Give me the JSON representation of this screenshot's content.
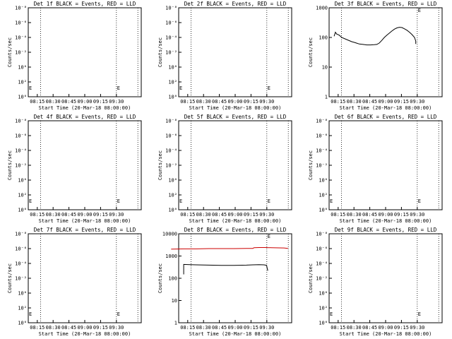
{
  "panels": [
    {
      "title": "Det 1f BLACK = Events, RED = LLD",
      "xlabel": "Start Time (20-Mar-18 08:00:00)",
      "ylabel": "Counts/sec",
      "yticks": [
        "10⁻⁸",
        "10⁻⁶",
        "10⁻⁴",
        "10⁻²",
        "10⁰",
        "10²",
        "10⁰"
      ],
      "xticks": [
        "08:15",
        "08:30",
        "08:45",
        "09:00",
        "09:15",
        "09:30"
      ],
      "marker_labels": [
        "E",
        "E"
      ],
      "chart_data": {
        "type": "line",
        "scale": "placeholder",
        "series": []
      }
    },
    {
      "title": "Det 2f BLACK = Events, RED = LLD",
      "xlabel": "Start Time (20-Mar-18 08:00:00)",
      "ylabel": "Counts/sec",
      "yticks": [
        "10⁻⁸",
        "10⁻⁶",
        "10⁻⁴",
        "10⁻²",
        "10⁰",
        "10²",
        "10⁰"
      ],
      "xticks": [
        "08:15",
        "08:30",
        "08:45",
        "09:00",
        "09:15",
        "09:30"
      ],
      "marker_labels": [
        "E",
        "E"
      ],
      "chart_data": {
        "type": "line",
        "scale": "placeholder",
        "series": []
      }
    },
    {
      "title": "Det 3f BLACK = Events, RED = LLD",
      "xlabel": "Start Time (20-Mar-18 08:00:00)",
      "ylabel": "Counts/sec",
      "yticks": [
        "1000",
        "100",
        "10",
        "1"
      ],
      "xticks": [
        "08:15",
        "08:30",
        "08:45",
        "09:00",
        "09:15",
        "09:30"
      ],
      "marker_labels": [
        "E"
      ],
      "chart_data": {
        "type": "line",
        "scale": "log",
        "ylim": [
          1,
          1000
        ],
        "series": [
          {
            "color": "#000000",
            "points": [
              [
                "08:10",
                110
              ],
              [
                "08:11",
                150
              ],
              [
                "08:12",
                130
              ],
              [
                "08:14",
                120
              ],
              [
                "08:16",
                100
              ],
              [
                "08:18",
                92
              ],
              [
                "08:20",
                85
              ],
              [
                "08:22",
                78
              ],
              [
                "08:24",
                72
              ],
              [
                "08:26",
                68
              ],
              [
                "08:28",
                64
              ],
              [
                "08:30",
                60
              ],
              [
                "08:33",
                58
              ],
              [
                "08:36",
                56
              ],
              [
                "08:39",
                56
              ],
              [
                "08:42",
                57
              ],
              [
                "08:44",
                58
              ],
              [
                "08:46",
                65
              ],
              [
                "08:48",
                80
              ],
              [
                "08:50",
                100
              ],
              [
                "08:52",
                120
              ],
              [
                "08:54",
                140
              ],
              [
                "08:56",
                165
              ],
              [
                "08:58",
                190
              ],
              [
                "09:00",
                210
              ],
              [
                "09:02",
                220
              ],
              [
                "09:04",
                215
              ],
              [
                "09:06",
                195
              ],
              [
                "09:08",
                175
              ],
              [
                "09:10",
                150
              ],
              [
                "09:12",
                125
              ],
              [
                "09:14",
                100
              ],
              [
                "09:15",
                75
              ],
              [
                "09:15",
                60
              ]
            ]
          }
        ]
      }
    },
    {
      "title": "Det 4f BLACK = Events, RED = LLD",
      "xlabel": "Start Time (20-Mar-18 08:00:00)",
      "ylabel": "Counts/sec",
      "yticks": [
        "10⁻⁸",
        "10⁻⁶",
        "10⁻⁴",
        "10⁻²",
        "10⁰",
        "10²",
        "10⁰"
      ],
      "xticks": [
        "08:15",
        "08:30",
        "08:45",
        "09:00",
        "09:15",
        "09:30"
      ],
      "marker_labels": [
        "E",
        "E"
      ],
      "chart_data": {
        "type": "line",
        "scale": "placeholder",
        "series": []
      }
    },
    {
      "title": "Det 5f BLACK = Events, RED = LLD",
      "xlabel": "Start Time (20-Mar-18 08:00:00)",
      "ylabel": "Counts/sec",
      "yticks": [
        "10⁻⁸",
        "10⁻⁶",
        "10⁻⁴",
        "10⁻²",
        "10⁰",
        "10²",
        "10⁰"
      ],
      "xticks": [
        "08:15",
        "08:30",
        "08:45",
        "09:00",
        "09:15",
        "09:30"
      ],
      "marker_labels": [
        "E",
        "E"
      ],
      "chart_data": {
        "type": "line",
        "scale": "placeholder",
        "series": []
      }
    },
    {
      "title": "Det 6f BLACK = Events, RED = LLD",
      "xlabel": "Start Time (20-Mar-18 08:00:00)",
      "ylabel": "Counts/sec",
      "yticks": [
        "10⁻⁸",
        "10⁻⁶",
        "10⁻⁴",
        "10⁻²",
        "10⁰",
        "10²",
        "10⁰"
      ],
      "xticks": [
        "08:15",
        "08:30",
        "08:45",
        "09:00",
        "09:15",
        "09:30"
      ],
      "marker_labels": [
        "E",
        "E"
      ],
      "chart_data": {
        "type": "line",
        "scale": "placeholder",
        "series": []
      }
    },
    {
      "title": "Det 7f BLACK = Events, RED = LLD",
      "xlabel": "Start Time (20-Mar-18 08:00:00)",
      "ylabel": "Counts/sec",
      "yticks": [
        "10⁻⁸",
        "10⁻⁶",
        "10⁻⁴",
        "10⁻²",
        "10⁰",
        "10²",
        "10⁰"
      ],
      "xticks": [
        "08:15",
        "08:30",
        "08:45",
        "09:00",
        "09:15",
        "09:30"
      ],
      "marker_labels": [
        "E",
        "E"
      ],
      "chart_data": {
        "type": "line",
        "scale": "placeholder",
        "series": []
      }
    },
    {
      "title": "Det 8f BLACK = Events, RED = LLD",
      "xlabel": "Start Time (20-Mar-18 08:00:00)",
      "ylabel": "Counts/sec",
      "yticks": [
        "10000",
        "1000",
        "100",
        "10",
        "1"
      ],
      "xticks": [
        "08:15",
        "08:30",
        "08:45",
        "09:00",
        "09:15",
        "09:30"
      ],
      "marker_labels": [
        "E"
      ],
      "chart_data": {
        "type": "line",
        "scale": "log",
        "ylim": [
          1,
          10000
        ],
        "series": [
          {
            "color": "#cc0000",
            "points": [
              [
                "08:00",
                2050
              ],
              [
                "08:10",
                2100
              ],
              [
                "08:20",
                2100
              ],
              [
                "08:30",
                2150
              ],
              [
                "08:40",
                2150
              ],
              [
                "08:50",
                2150
              ],
              [
                "09:00",
                2200
              ],
              [
                "09:05",
                2200
              ],
              [
                "09:06",
                2350
              ],
              [
                "09:10",
                2400
              ],
              [
                "09:15",
                2400
              ],
              [
                "09:20",
                2350
              ],
              [
                "09:30",
                2300
              ],
              [
                "09:33",
                2200
              ]
            ]
          },
          {
            "color": "#000000",
            "points": [
              [
                "08:10",
                150
              ],
              [
                "08:10",
                420
              ],
              [
                "08:15",
                410
              ],
              [
                "08:20",
                400
              ],
              [
                "08:30",
                390
              ],
              [
                "08:40",
                380
              ],
              [
                "08:50",
                380
              ],
              [
                "09:00",
                390
              ],
              [
                "09:05",
                400
              ],
              [
                "09:10",
                410
              ],
              [
                "09:14",
                400
              ],
              [
                "09:16",
                380
              ],
              [
                "09:17",
                220
              ]
            ]
          }
        ]
      }
    },
    {
      "title": "Det 9f BLACK = Events, RED = LLD",
      "xlabel": "Start Time (20-Mar-18 08:00:00)",
      "ylabel": "Counts/sec",
      "yticks": [
        "10⁻⁸",
        "10⁻⁶",
        "10⁻⁴",
        "10⁻²",
        "10⁰",
        "10²",
        "10⁰"
      ],
      "xticks": [
        "08:15",
        "08:30",
        "08:45",
        "09:00",
        "09:15",
        "09:30"
      ],
      "marker_labels": [
        "E",
        "E"
      ],
      "chart_data": {
        "type": "line",
        "scale": "placeholder",
        "series": []
      }
    }
  ]
}
